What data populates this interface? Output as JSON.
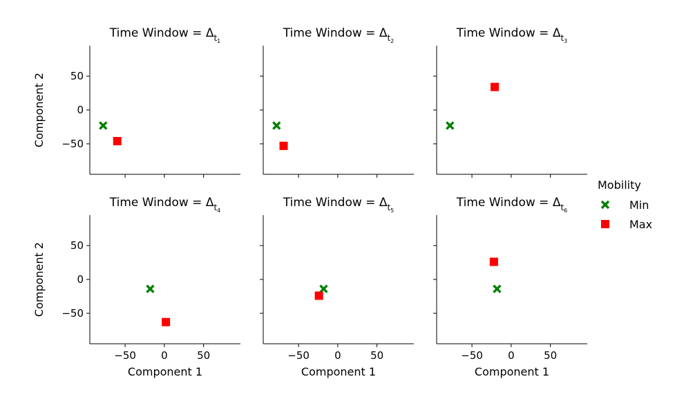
{
  "chart_data": [
    {
      "type": "scatter",
      "title_prefix": "Time Window = Δ",
      "title_sub": "1",
      "xlabel": "",
      "ylabel": "Component 2",
      "xlim": [
        -95,
        97
      ],
      "ylim": [
        -95,
        95
      ],
      "series": [
        {
          "name": "Min",
          "marker": "x",
          "color": "#008000",
          "points": [
            {
              "x": -78,
              "y": -23
            }
          ]
        },
        {
          "name": "Max",
          "marker": "s",
          "color": "#ff0000",
          "points": [
            {
              "x": -60,
              "y": -46
            }
          ]
        }
      ]
    },
    {
      "type": "scatter",
      "title_prefix": "Time Window = Δ",
      "title_sub": "2",
      "xlabel": "",
      "ylabel": "",
      "xlim": [
        -95,
        97
      ],
      "ylim": [
        -95,
        95
      ],
      "series": [
        {
          "name": "Min",
          "marker": "x",
          "color": "#008000",
          "points": [
            {
              "x": -78,
              "y": -23
            }
          ]
        },
        {
          "name": "Max",
          "marker": "s",
          "color": "#ff0000",
          "points": [
            {
              "x": -69,
              "y": -53
            }
          ]
        }
      ]
    },
    {
      "type": "scatter",
      "title_prefix": "Time Window = Δ",
      "title_sub": "3",
      "xlabel": "",
      "ylabel": "",
      "xlim": [
        -95,
        97
      ],
      "ylim": [
        -95,
        95
      ],
      "series": [
        {
          "name": "Min",
          "marker": "x",
          "color": "#008000",
          "points": [
            {
              "x": -78,
              "y": -23
            }
          ]
        },
        {
          "name": "Max",
          "marker": "s",
          "color": "#ff0000",
          "points": [
            {
              "x": -21,
              "y": 34
            }
          ]
        }
      ]
    },
    {
      "type": "scatter",
      "title_prefix": "Time Window = Δ",
      "title_sub": "4",
      "xlabel": "Component 1",
      "ylabel": "Component 2",
      "xlim": [
        -95,
        97
      ],
      "ylim": [
        -95,
        95
      ],
      "series": [
        {
          "name": "Min",
          "marker": "x",
          "color": "#008000",
          "points": [
            {
              "x": -18,
              "y": -14
            }
          ]
        },
        {
          "name": "Max",
          "marker": "s",
          "color": "#ff0000",
          "points": [
            {
              "x": 2,
              "y": -63
            }
          ]
        }
      ]
    },
    {
      "type": "scatter",
      "title_prefix": "Time Window = Δ",
      "title_sub": "5",
      "xlabel": "Component 1",
      "ylabel": "",
      "xlim": [
        -95,
        97
      ],
      "ylim": [
        -95,
        95
      ],
      "series": [
        {
          "name": "Min",
          "marker": "x",
          "color": "#008000",
          "points": [
            {
              "x": -18,
              "y": -14
            }
          ]
        },
        {
          "name": "Max",
          "marker": "s",
          "color": "#ff0000",
          "points": [
            {
              "x": -24,
              "y": -24
            }
          ]
        }
      ]
    },
    {
      "type": "scatter",
      "title_prefix": "Time Window = Δ",
      "title_sub": "6",
      "xlabel": "Component 1",
      "ylabel": "",
      "xlim": [
        -95,
        97
      ],
      "ylim": [
        -95,
        95
      ],
      "series": [
        {
          "name": "Min",
          "marker": "x",
          "color": "#008000",
          "points": [
            {
              "x": -18,
              "y": -14
            }
          ]
        },
        {
          "name": "Max",
          "marker": "s",
          "color": "#ff0000",
          "points": [
            {
              "x": -22,
              "y": 26
            }
          ]
        }
      ]
    }
  ],
  "axes": {
    "xticks": [
      {
        "value": -50,
        "label": "−50"
      },
      {
        "value": 0,
        "label": "0"
      },
      {
        "value": 50,
        "label": "50"
      }
    ],
    "yticks": [
      {
        "value": 50,
        "label": "50"
      },
      {
        "value": 0,
        "label": "0"
      },
      {
        "value": -50,
        "label": "−50"
      }
    ],
    "title_sub_letter": "t"
  },
  "legend": {
    "title": "Mobility",
    "placement": "right",
    "items": [
      {
        "label": "Min",
        "marker": "x",
        "color": "#008000"
      },
      {
        "label": "Max",
        "marker": "s",
        "color": "#ff0000"
      }
    ]
  }
}
